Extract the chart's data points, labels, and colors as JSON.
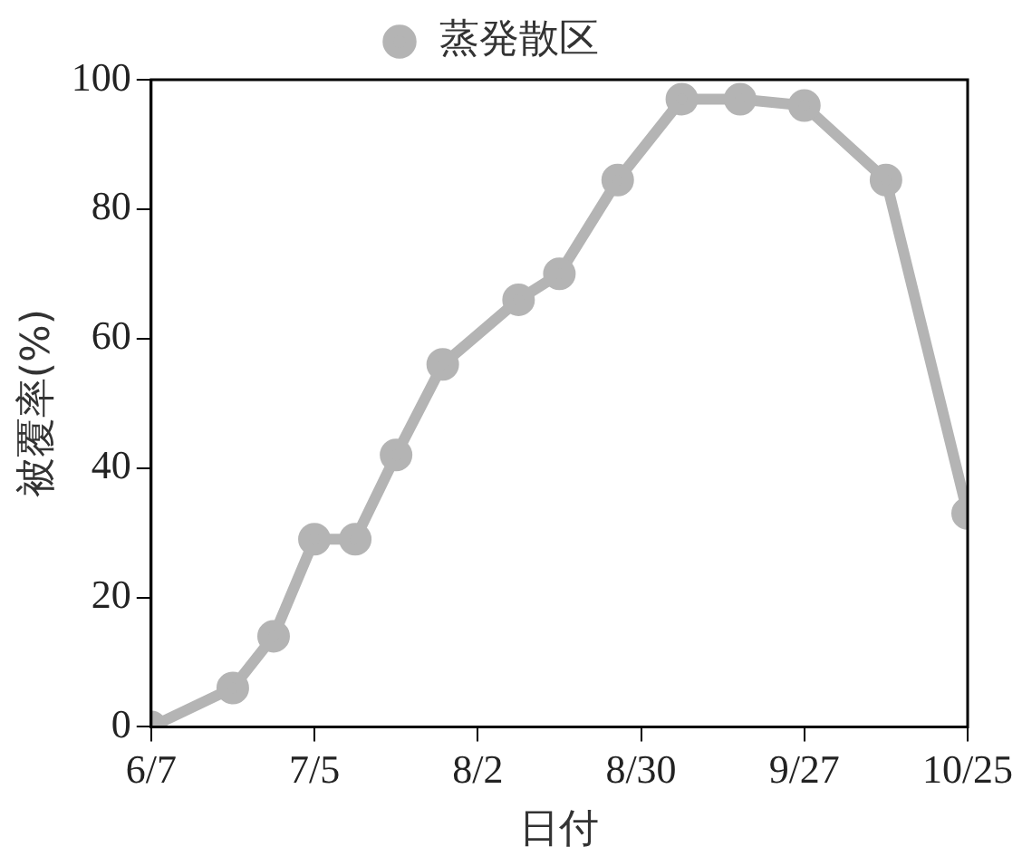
{
  "chart_data": {
    "type": "line",
    "xlabel": "日付",
    "ylabel": "被覆率(%)",
    "x": [
      "--06-07",
      "--06-21",
      "--06-28",
      "--07-05",
      "--07-12",
      "--07-19",
      "--07-27",
      "--08-09",
      "--08-16",
      "--08-26",
      "--09-06",
      "--09-16",
      "--09-27",
      "--10-11",
      "--10-25"
    ],
    "series": [
      {
        "name": "蒸発散区",
        "color": "#b4b4b4",
        "values": [
          0,
          6,
          14,
          29,
          29,
          42,
          56,
          66,
          70,
          84.5,
          97,
          97,
          96,
          84.5,
          33
        ]
      }
    ],
    "xlim": [
      "--06-07",
      "--10-25"
    ],
    "xticks": [
      {
        "value": "--06-07",
        "label": "6/7"
      },
      {
        "value": "--07-05",
        "label": "7/5"
      },
      {
        "value": "--08-02",
        "label": "8/2"
      },
      {
        "value": "--08-30",
        "label": "8/30"
      },
      {
        "value": "--09-27",
        "label": "9/27"
      },
      {
        "value": "--10-25",
        "label": "10/25"
      }
    ],
    "ylim": [
      0,
      100
    ],
    "yticks": [
      0,
      20,
      40,
      60,
      80,
      100
    ],
    "grid": false,
    "legend": "top",
    "marker": "circle",
    "line_style": "solid"
  }
}
